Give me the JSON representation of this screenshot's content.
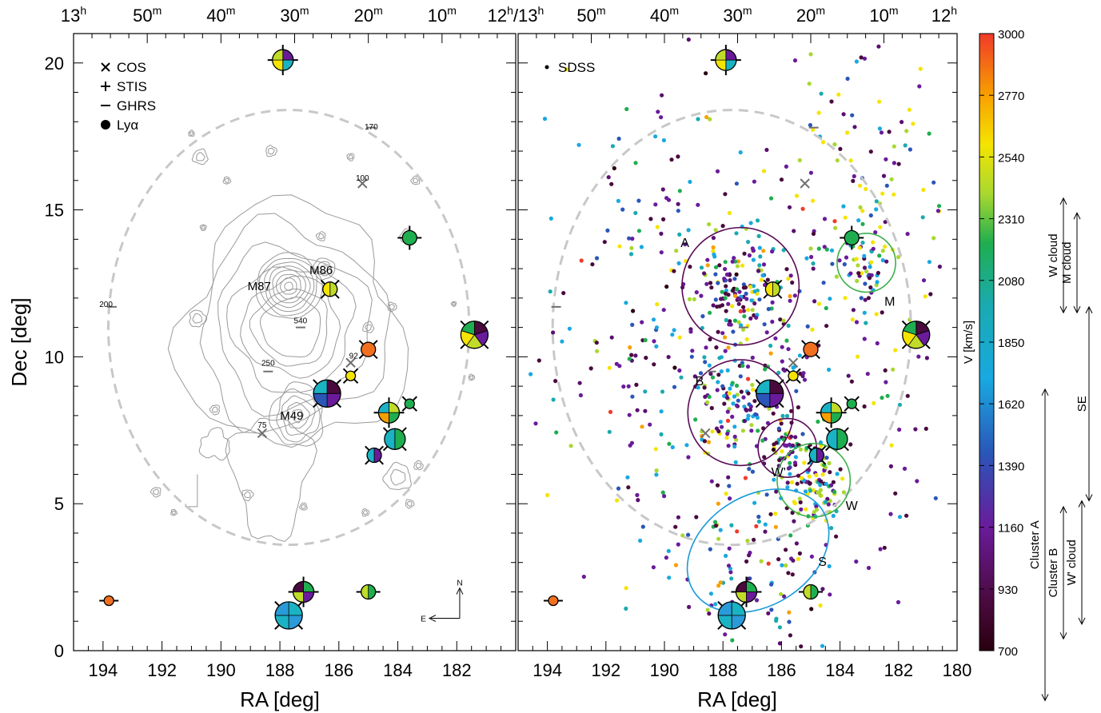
{
  "chart_data": {
    "type": "scatter",
    "panels": [
      {
        "id": "left",
        "legend": [
          {
            "marker": "x",
            "label": "COS"
          },
          {
            "marker": "+",
            "label": "STIS"
          },
          {
            "marker": "-",
            "label": "GHRS"
          },
          {
            "marker": "dot",
            "label": "Lyα"
          }
        ]
      },
      {
        "id": "right",
        "legend": [
          {
            "marker": "small-dot",
            "label": "SDSS"
          }
        ]
      }
    ],
    "xlabel": "RA [deg]",
    "ylabel": "Dec [deg]",
    "xlim": [
      195,
      180
    ],
    "ylim": [
      0,
      21
    ],
    "x_ticks_left": [
      "194",
      "192",
      "190",
      "188",
      "186",
      "184",
      "182"
    ],
    "x_ticks_right": [
      "194",
      "192",
      "190",
      "188",
      "186",
      "184",
      "182",
      "180"
    ],
    "x_ticks_top_left": [
      "13h",
      "50m",
      "40m",
      "30m",
      "20m",
      "10m",
      "12h/13h"
    ],
    "x_ticks_top_right": [
      "50m",
      "40m",
      "30m",
      "20m",
      "10m",
      "12h"
    ],
    "y_ticks": [
      "0",
      "5",
      "10",
      "15",
      "20"
    ],
    "galaxy_labels": [
      {
        "text": "M87",
        "x": 188.7,
        "y": 12.4
      },
      {
        "text": "M86",
        "x": 186.6,
        "y": 12.95
      },
      {
        "text": "M49",
        "x": 187.6,
        "y": 8.0
      }
    ],
    "contour_labels": [
      {
        "text": "170",
        "x": 184.9,
        "y": 17.85
      },
      {
        "text": "100",
        "x": 185.2,
        "y": 16.1
      },
      {
        "text": "200",
        "x": 193.9,
        "y": 11.8
      },
      {
        "text": "540",
        "x": 187.3,
        "y": 11.25
      },
      {
        "text": "250",
        "x": 188.4,
        "y": 9.8
      },
      {
        "text": "92",
        "x": 185.5,
        "y": 10.05
      },
      {
        "text": "75",
        "x": 188.6,
        "y": 7.7
      }
    ],
    "absorbers": [
      {
        "ra": 187.9,
        "dec": 20.1,
        "size": "medium",
        "marker": "+",
        "colors": [
          "#6a1b9a",
          "#1ab3c3",
          "#f5e400",
          "#c0dc28"
        ]
      },
      {
        "ra": 183.6,
        "dec": 14.05,
        "size": "small",
        "marker": "+",
        "colors": [
          "#1fae4f"
        ]
      },
      {
        "ra": 186.3,
        "dec": 12.3,
        "size": "small",
        "marker": "x",
        "colors": [
          "#c0dc28",
          "#f5e400"
        ]
      },
      {
        "ra": 181.4,
        "dec": 10.75,
        "size": "large",
        "marker": "x",
        "colors": [
          "#4a0a3e",
          "#6a1b9a",
          "#c0dc28",
          "#f5e400",
          "#1fae4f"
        ]
      },
      {
        "ra": 185.0,
        "dec": 10.25,
        "size": "small",
        "marker": "x",
        "colors": [
          "#f07020"
        ]
      },
      {
        "ra": 185.6,
        "dec": 9.35,
        "size": "tiny",
        "marker": "x",
        "colors": [
          "#f5e400"
        ]
      },
      {
        "ra": 186.4,
        "dec": 8.75,
        "size": "large",
        "marker": "x",
        "colors": [
          "#4a0a3e",
          "#6a1b9a",
          "#2a56b8",
          "#1ab3c3"
        ]
      },
      {
        "ra": 184.3,
        "dec": 8.1,
        "size": "medium",
        "marker": "+",
        "colors": [
          "#c0dc28",
          "#1fae4f",
          "#f5a000",
          "#1ab3c3"
        ]
      },
      {
        "ra": 183.6,
        "dec": 8.4,
        "size": "tiny",
        "marker": "x",
        "colors": [
          "#1fae4f"
        ]
      },
      {
        "ra": 184.1,
        "dec": 7.2,
        "size": "medium",
        "marker": "x",
        "colors": [
          "#1fae4f",
          "#1ab3c3"
        ]
      },
      {
        "ra": 184.8,
        "dec": 6.65,
        "size": "small",
        "marker": "x",
        "colors": [
          "#6a1b9a",
          "#1ab3c3"
        ]
      },
      {
        "ra": 193.8,
        "dec": 1.7,
        "size": "tiny",
        "marker": "-",
        "colors": [
          "#f07020"
        ]
      },
      {
        "ra": 187.2,
        "dec": 2.0,
        "size": "medium",
        "marker": "+",
        "colors": [
          "#1fae4f",
          "#6a1b9a",
          "#c0dc28",
          "#4a0a3e"
        ]
      },
      {
        "ra": 185.0,
        "dec": 2.0,
        "size": "small",
        "marker": "-",
        "colors": [
          "#1fae4f",
          "#c0dc28"
        ]
      },
      {
        "ra": 187.7,
        "dec": 1.2,
        "size": "large",
        "marker": "x",
        "colors": [
          "#1ab3c3",
          "#2a9ad8",
          "#1ab3c3",
          "#2a9ad8"
        ]
      }
    ],
    "cosmic_markers": [
      {
        "ra": 185.2,
        "dec": 15.9
      },
      {
        "ra": 185.6,
        "dec": 9.8
      },
      {
        "ra": 188.6,
        "dec": 7.4
      }
    ],
    "ghrs_markers": [
      {
        "ra": 184.9,
        "dec": 17.8
      },
      {
        "ra": 193.7,
        "dec": 11.7
      },
      {
        "ra": 187.3,
        "dec": 11.0
      },
      {
        "ra": 188.4,
        "dec": 9.5
      }
    ],
    "regions": [
      {
        "label": "A",
        "ra": 187.4,
        "dec": 12.4,
        "r_deg": 2.0,
        "color": "#5a0a55"
      },
      {
        "label": "B",
        "ra": 187.4,
        "dec": 8.1,
        "r_deg": 1.8,
        "color": "#5a0a55"
      },
      {
        "label": "W'",
        "ra": 185.8,
        "dec": 6.9,
        "r_deg": 1.0,
        "color": "#5a0a55"
      },
      {
        "label": "M",
        "ra": 183.1,
        "dec": 13.2,
        "r_deg": 1.0,
        "color": "#3cb04a"
      },
      {
        "label": "W",
        "ra": 184.9,
        "dec": 5.8,
        "r_deg": 1.25,
        "color": "#3cb04a"
      },
      {
        "label": "S",
        "ra": 186.8,
        "dec": 3.4,
        "r_deg": 2.6,
        "color": "#1a9ad6"
      }
    ],
    "colorbar": {
      "label": "V [km/s]",
      "min": 700,
      "max": 3000,
      "ticks": [
        "3000",
        "2770",
        "2540",
        "2310",
        "2080",
        "1850",
        "1620",
        "1390",
        "1160",
        "930",
        "700"
      ]
    },
    "ranges": [
      {
        "label": "W cloud",
        "dec_top": 15.4,
        "dec_bottom": 11.5
      },
      {
        "label": "M cloud",
        "dec_top": 14.9,
        "dec_bottom": 11.5
      },
      {
        "label": "SE",
        "dec_top": 11.7,
        "dec_bottom": 5.1
      },
      {
        "label": "Cluster A",
        "dec_top": 8.9,
        "dec_bottom": -1.7
      },
      {
        "label": "Cluster B",
        "dec_top": 4.9,
        "dec_bottom": 0.4
      },
      {
        "label": "W' cloud",
        "dec_top": 5.1,
        "dec_bottom": 0.9
      }
    ],
    "compass": {
      "north": "N",
      "east": "E"
    }
  }
}
